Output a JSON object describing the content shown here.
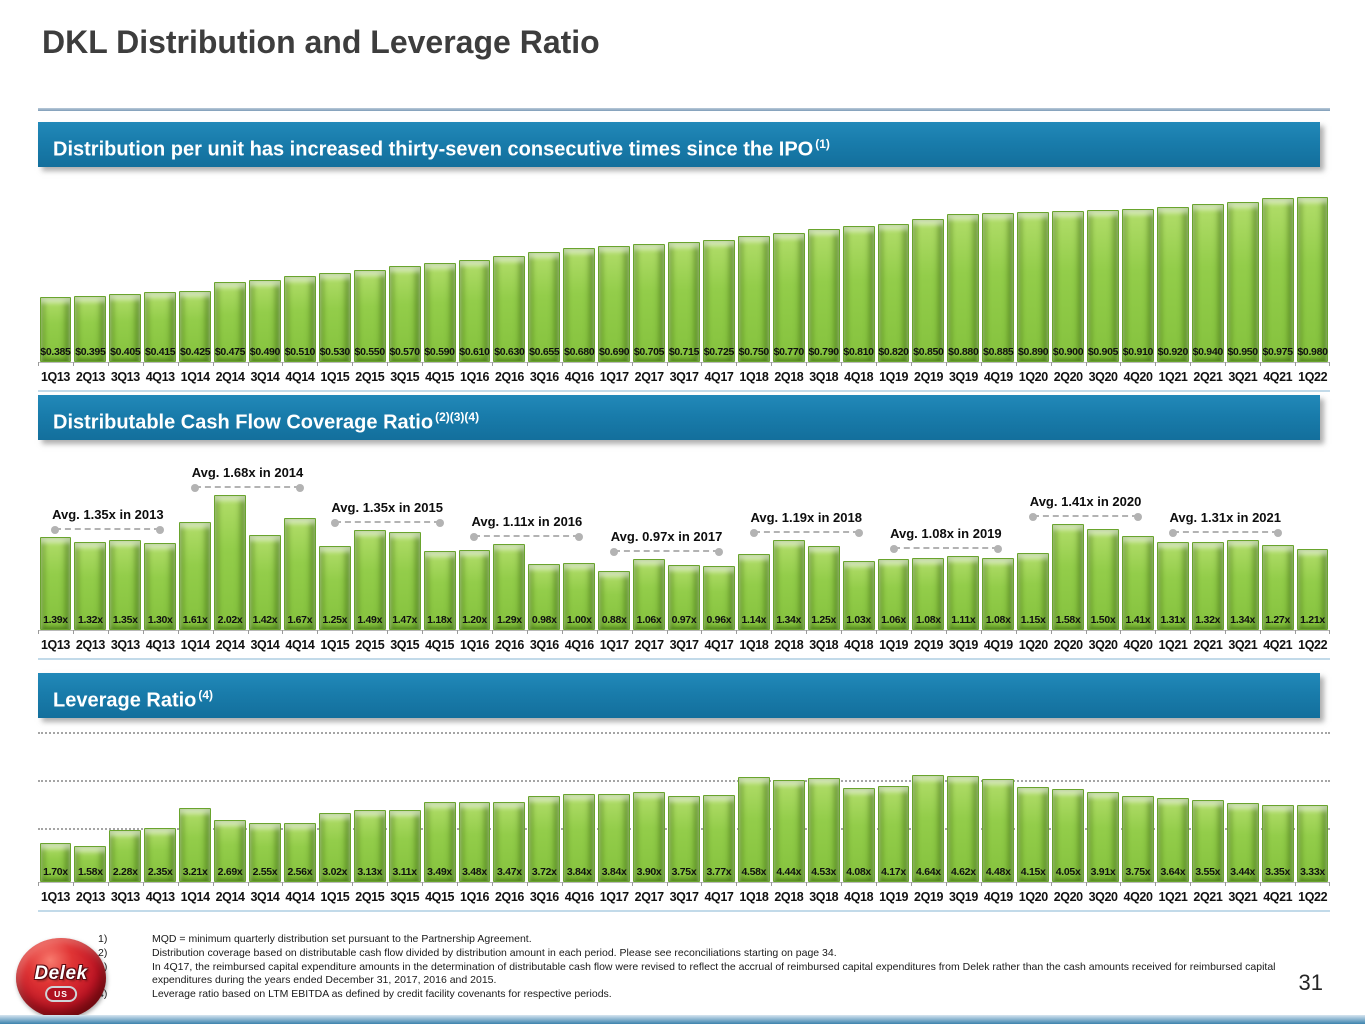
{
  "slide": {
    "title": "DKL Distribution and Leverage Ratio",
    "page_number": "31"
  },
  "logo": {
    "brand": "Delek",
    "badge": "US"
  },
  "chart_data": [
    {
      "type": "bar",
      "title": "Distribution per unit has increased thirty-seven consecutive times since the IPO",
      "title_superscript": "(1)",
      "categories": [
        "1Q13",
        "2Q13",
        "3Q13",
        "4Q13",
        "1Q14",
        "2Q14",
        "3Q14",
        "4Q14",
        "1Q15",
        "2Q15",
        "3Q15",
        "4Q15",
        "1Q16",
        "2Q16",
        "3Q16",
        "4Q16",
        "1Q17",
        "2Q17",
        "3Q17",
        "4Q17",
        "1Q18",
        "2Q18",
        "3Q18",
        "4Q18",
        "1Q19",
        "2Q19",
        "3Q19",
        "4Q19",
        "1Q20",
        "2Q20",
        "3Q20",
        "4Q20",
        "1Q21",
        "2Q21",
        "3Q21",
        "4Q21",
        "1Q22"
      ],
      "values": [
        0.385,
        0.395,
        0.405,
        0.415,
        0.425,
        0.475,
        0.49,
        0.51,
        0.53,
        0.55,
        0.57,
        0.59,
        0.61,
        0.63,
        0.655,
        0.68,
        0.69,
        0.705,
        0.715,
        0.725,
        0.75,
        0.77,
        0.79,
        0.81,
        0.82,
        0.85,
        0.88,
        0.885,
        0.89,
        0.9,
        0.905,
        0.91,
        0.92,
        0.94,
        0.95,
        0.975,
        0.98
      ],
      "labels": [
        "$0.385",
        "$0.395",
        "$0.405",
        "$0.415",
        "$0.425",
        "$0.475",
        "$0.490",
        "$0.510",
        "$0.530",
        "$0.550",
        "$0.570",
        "$0.590",
        "$0.610",
        "$0.630",
        "$0.655",
        "$0.680",
        "$0.690",
        "$0.705",
        "$0.715",
        "$0.725",
        "$0.750",
        "$0.770",
        "$0.790",
        "$0.810",
        "$0.820",
        "$0.850",
        "$0.880",
        "$0.885",
        "$0.890",
        "$0.900",
        "$0.905",
        "$0.910",
        "$0.920",
        "$0.940",
        "$0.950",
        "$0.975",
        "$0.980"
      ],
      "xlabel": "",
      "ylabel": "",
      "ylim": [
        0,
        1.05
      ],
      "grid": false,
      "legend": "none"
    },
    {
      "type": "bar",
      "title": "Distributable Cash Flow Coverage Ratio",
      "title_superscript": "(2)(3)(4)",
      "categories": [
        "1Q13",
        "2Q13",
        "3Q13",
        "4Q13",
        "1Q14",
        "2Q14",
        "3Q14",
        "4Q14",
        "1Q15",
        "2Q15",
        "3Q15",
        "4Q15",
        "1Q16",
        "2Q16",
        "3Q16",
        "4Q16",
        "1Q17",
        "2Q17",
        "3Q17",
        "4Q17",
        "1Q18",
        "2Q18",
        "3Q18",
        "4Q18",
        "1Q19",
        "2Q19",
        "3Q19",
        "4Q19",
        "1Q20",
        "2Q20",
        "3Q20",
        "4Q20",
        "1Q21",
        "2Q21",
        "3Q21",
        "4Q21",
        "1Q22"
      ],
      "values": [
        1.39,
        1.32,
        1.35,
        1.3,
        1.61,
        2.02,
        1.42,
        1.67,
        1.25,
        1.49,
        1.47,
        1.18,
        1.2,
        1.29,
        0.98,
        1.0,
        0.88,
        1.06,
        0.97,
        0.96,
        1.14,
        1.34,
        1.25,
        1.03,
        1.06,
        1.08,
        1.11,
        1.08,
        1.15,
        1.58,
        1.5,
        1.41,
        1.31,
        1.32,
        1.34,
        1.27,
        1.21
      ],
      "labels": [
        "1.39x",
        "1.32x",
        "1.35x",
        "1.30x",
        "1.61x",
        "2.02x",
        "1.42x",
        "1.67x",
        "1.25x",
        "1.49x",
        "1.47x",
        "1.18x",
        "1.20x",
        "1.29x",
        "0.98x",
        "1.00x",
        "0.88x",
        "1.06x",
        "0.97x",
        "0.96x",
        "1.14x",
        "1.34x",
        "1.25x",
        "1.03x",
        "1.06x",
        "1.08x",
        "1.11x",
        "1.08x",
        "1.15x",
        "1.58x",
        "1.50x",
        "1.41x",
        "1.31x",
        "1.32x",
        "1.34x",
        "1.27x",
        "1.21x"
      ],
      "annotations": [
        {
          "text": "Avg. 1.35x in 2013",
          "from": 0,
          "to": 3
        },
        {
          "text": "Avg. 1.68x in 2014",
          "from": 4,
          "to": 7
        },
        {
          "text": "Avg. 1.35x in 2015",
          "from": 8,
          "to": 11
        },
        {
          "text": "Avg. 1.11x in 2016",
          "from": 12,
          "to": 15
        },
        {
          "text": "Avg. 0.97x in 2017",
          "from": 16,
          "to": 19
        },
        {
          "text": "Avg. 1.19x in 2018",
          "from": 20,
          "to": 23
        },
        {
          "text": "Avg. 1.08x in 2019",
          "from": 24,
          "to": 27
        },
        {
          "text": "Avg. 1.41x in 2020",
          "from": 28,
          "to": 31
        },
        {
          "text": "Avg. 1.31x in 2021",
          "from": 32,
          "to": 35
        }
      ],
      "xlabel": "",
      "ylabel": "",
      "ylim": [
        0,
        2.6
      ],
      "grid": false,
      "legend": "none"
    },
    {
      "type": "bar",
      "title": "Leverage Ratio",
      "title_superscript": "(4)",
      "categories": [
        "1Q13",
        "2Q13",
        "3Q13",
        "4Q13",
        "1Q14",
        "2Q14",
        "3Q14",
        "4Q14",
        "1Q15",
        "2Q15",
        "3Q15",
        "4Q15",
        "1Q16",
        "2Q16",
        "3Q16",
        "4Q16",
        "1Q17",
        "2Q17",
        "3Q17",
        "4Q17",
        "1Q18",
        "2Q18",
        "3Q18",
        "4Q18",
        "1Q19",
        "2Q19",
        "3Q19",
        "4Q19",
        "1Q20",
        "2Q20",
        "3Q20",
        "4Q20",
        "1Q21",
        "2Q21",
        "3Q21",
        "4Q21",
        "1Q22"
      ],
      "values": [
        1.7,
        1.58,
        2.28,
        2.35,
        3.21,
        2.69,
        2.55,
        2.56,
        3.02,
        3.13,
        3.11,
        3.49,
        3.48,
        3.47,
        3.72,
        3.84,
        3.84,
        3.9,
        3.75,
        3.77,
        4.58,
        4.44,
        4.53,
        4.08,
        4.17,
        4.64,
        4.62,
        4.48,
        4.15,
        4.05,
        3.91,
        3.75,
        3.64,
        3.55,
        3.44,
        3.35,
        3.33
      ],
      "labels": [
        "1.70x",
        "1.58x",
        "2.28x",
        "2.35x",
        "3.21x",
        "2.69x",
        "2.55x",
        "2.56x",
        "3.02x",
        "3.13x",
        "3.11x",
        "3.49x",
        "3.48x",
        "3.47x",
        "3.72x",
        "3.84x",
        "3.84x",
        "3.90x",
        "3.75x",
        "3.77x",
        "4.58x",
        "4.44x",
        "4.53x",
        "4.08x",
        "4.17x",
        "4.64x",
        "4.62x",
        "4.48x",
        "4.15x",
        "4.05x",
        "3.91x",
        "3.75x",
        "3.64x",
        "3.55x",
        "3.44x",
        "3.35x",
        "3.33x"
      ],
      "xlabel": "",
      "ylabel": "",
      "ylim": [
        0,
        7
      ],
      "grid": true,
      "legend": "none"
    }
  ],
  "footnotes": [
    {
      "num": "1)",
      "text": "MQD = minimum quarterly distribution set pursuant to the Partnership Agreement."
    },
    {
      "num": "2)",
      "text": "Distribution coverage based on distributable cash flow divided by distribution amount in each period. Please see reconciliations starting on page 34."
    },
    {
      "num": "3)",
      "text": "In 4Q17, the reimbursed capital expenditure amounts in the determination of distributable cash flow were revised to reflect the accrual of reimbursed capital expenditures from Delek rather than the cash amounts received for reimbursed capital expenditures during the years ended December 31, 2017, 2016 and 2015."
    },
    {
      "num": "4)",
      "text": "Leverage ratio based on LTM EBITDA as defined by credit facility covenants for respective periods."
    }
  ],
  "colors": {
    "banner_blue": "#16749f",
    "bar_green": "#8cc63f",
    "title_gray": "#3d3d3d",
    "annotation_gray": "#b3b3b3"
  }
}
